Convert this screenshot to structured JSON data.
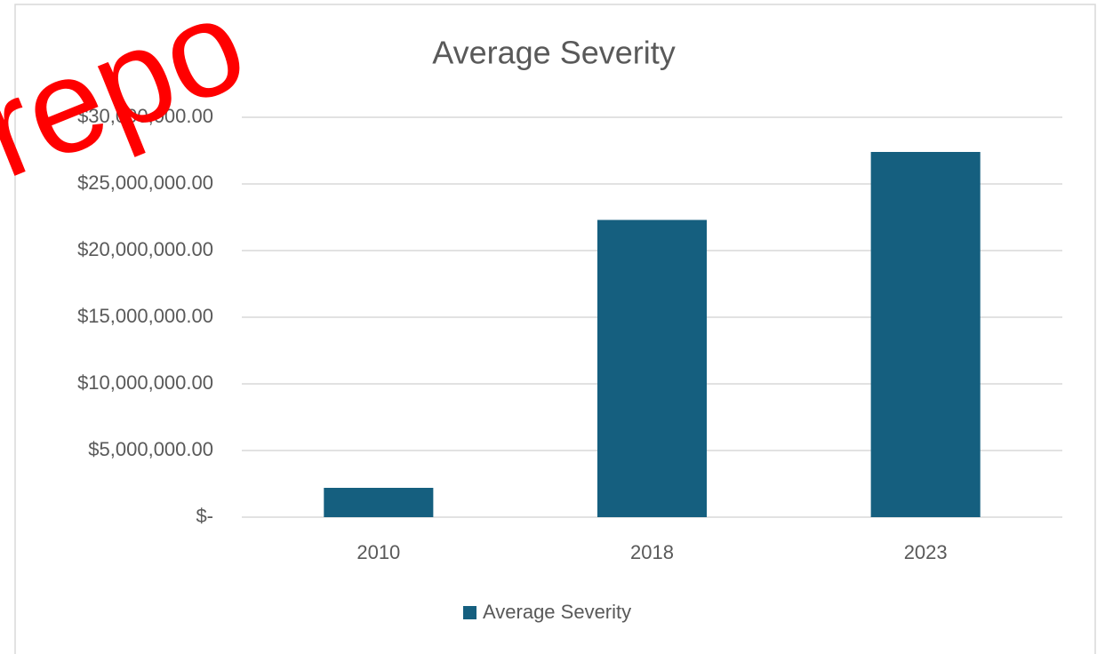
{
  "chart_data": {
    "type": "bar",
    "title": "Average Severity",
    "categories": [
      "2010",
      "2018",
      "2023"
    ],
    "series": [
      {
        "name": "Average Severity",
        "color": "#155f7f",
        "values": [
          2200000,
          22300000,
          27400000
        ]
      }
    ],
    "ylim": [
      0,
      30000000
    ],
    "yticks": [
      {
        "value": 0,
        "label": "$-"
      },
      {
        "value": 5000000,
        "label": "$5,000,000.00"
      },
      {
        "value": 10000000,
        "label": "$10,000,000.00"
      },
      {
        "value": 15000000,
        "label": "$15,000,000.00"
      },
      {
        "value": 20000000,
        "label": "$20,000,000.00"
      },
      {
        "value": 25000000,
        "label": "$25,000,000.00"
      },
      {
        "value": 30000000,
        "label": "$30,000,000.00"
      }
    ],
    "grid": true,
    "legend": "bottom",
    "annotations": [
      {
        "text": "repo",
        "color": "#ff0000"
      }
    ]
  }
}
